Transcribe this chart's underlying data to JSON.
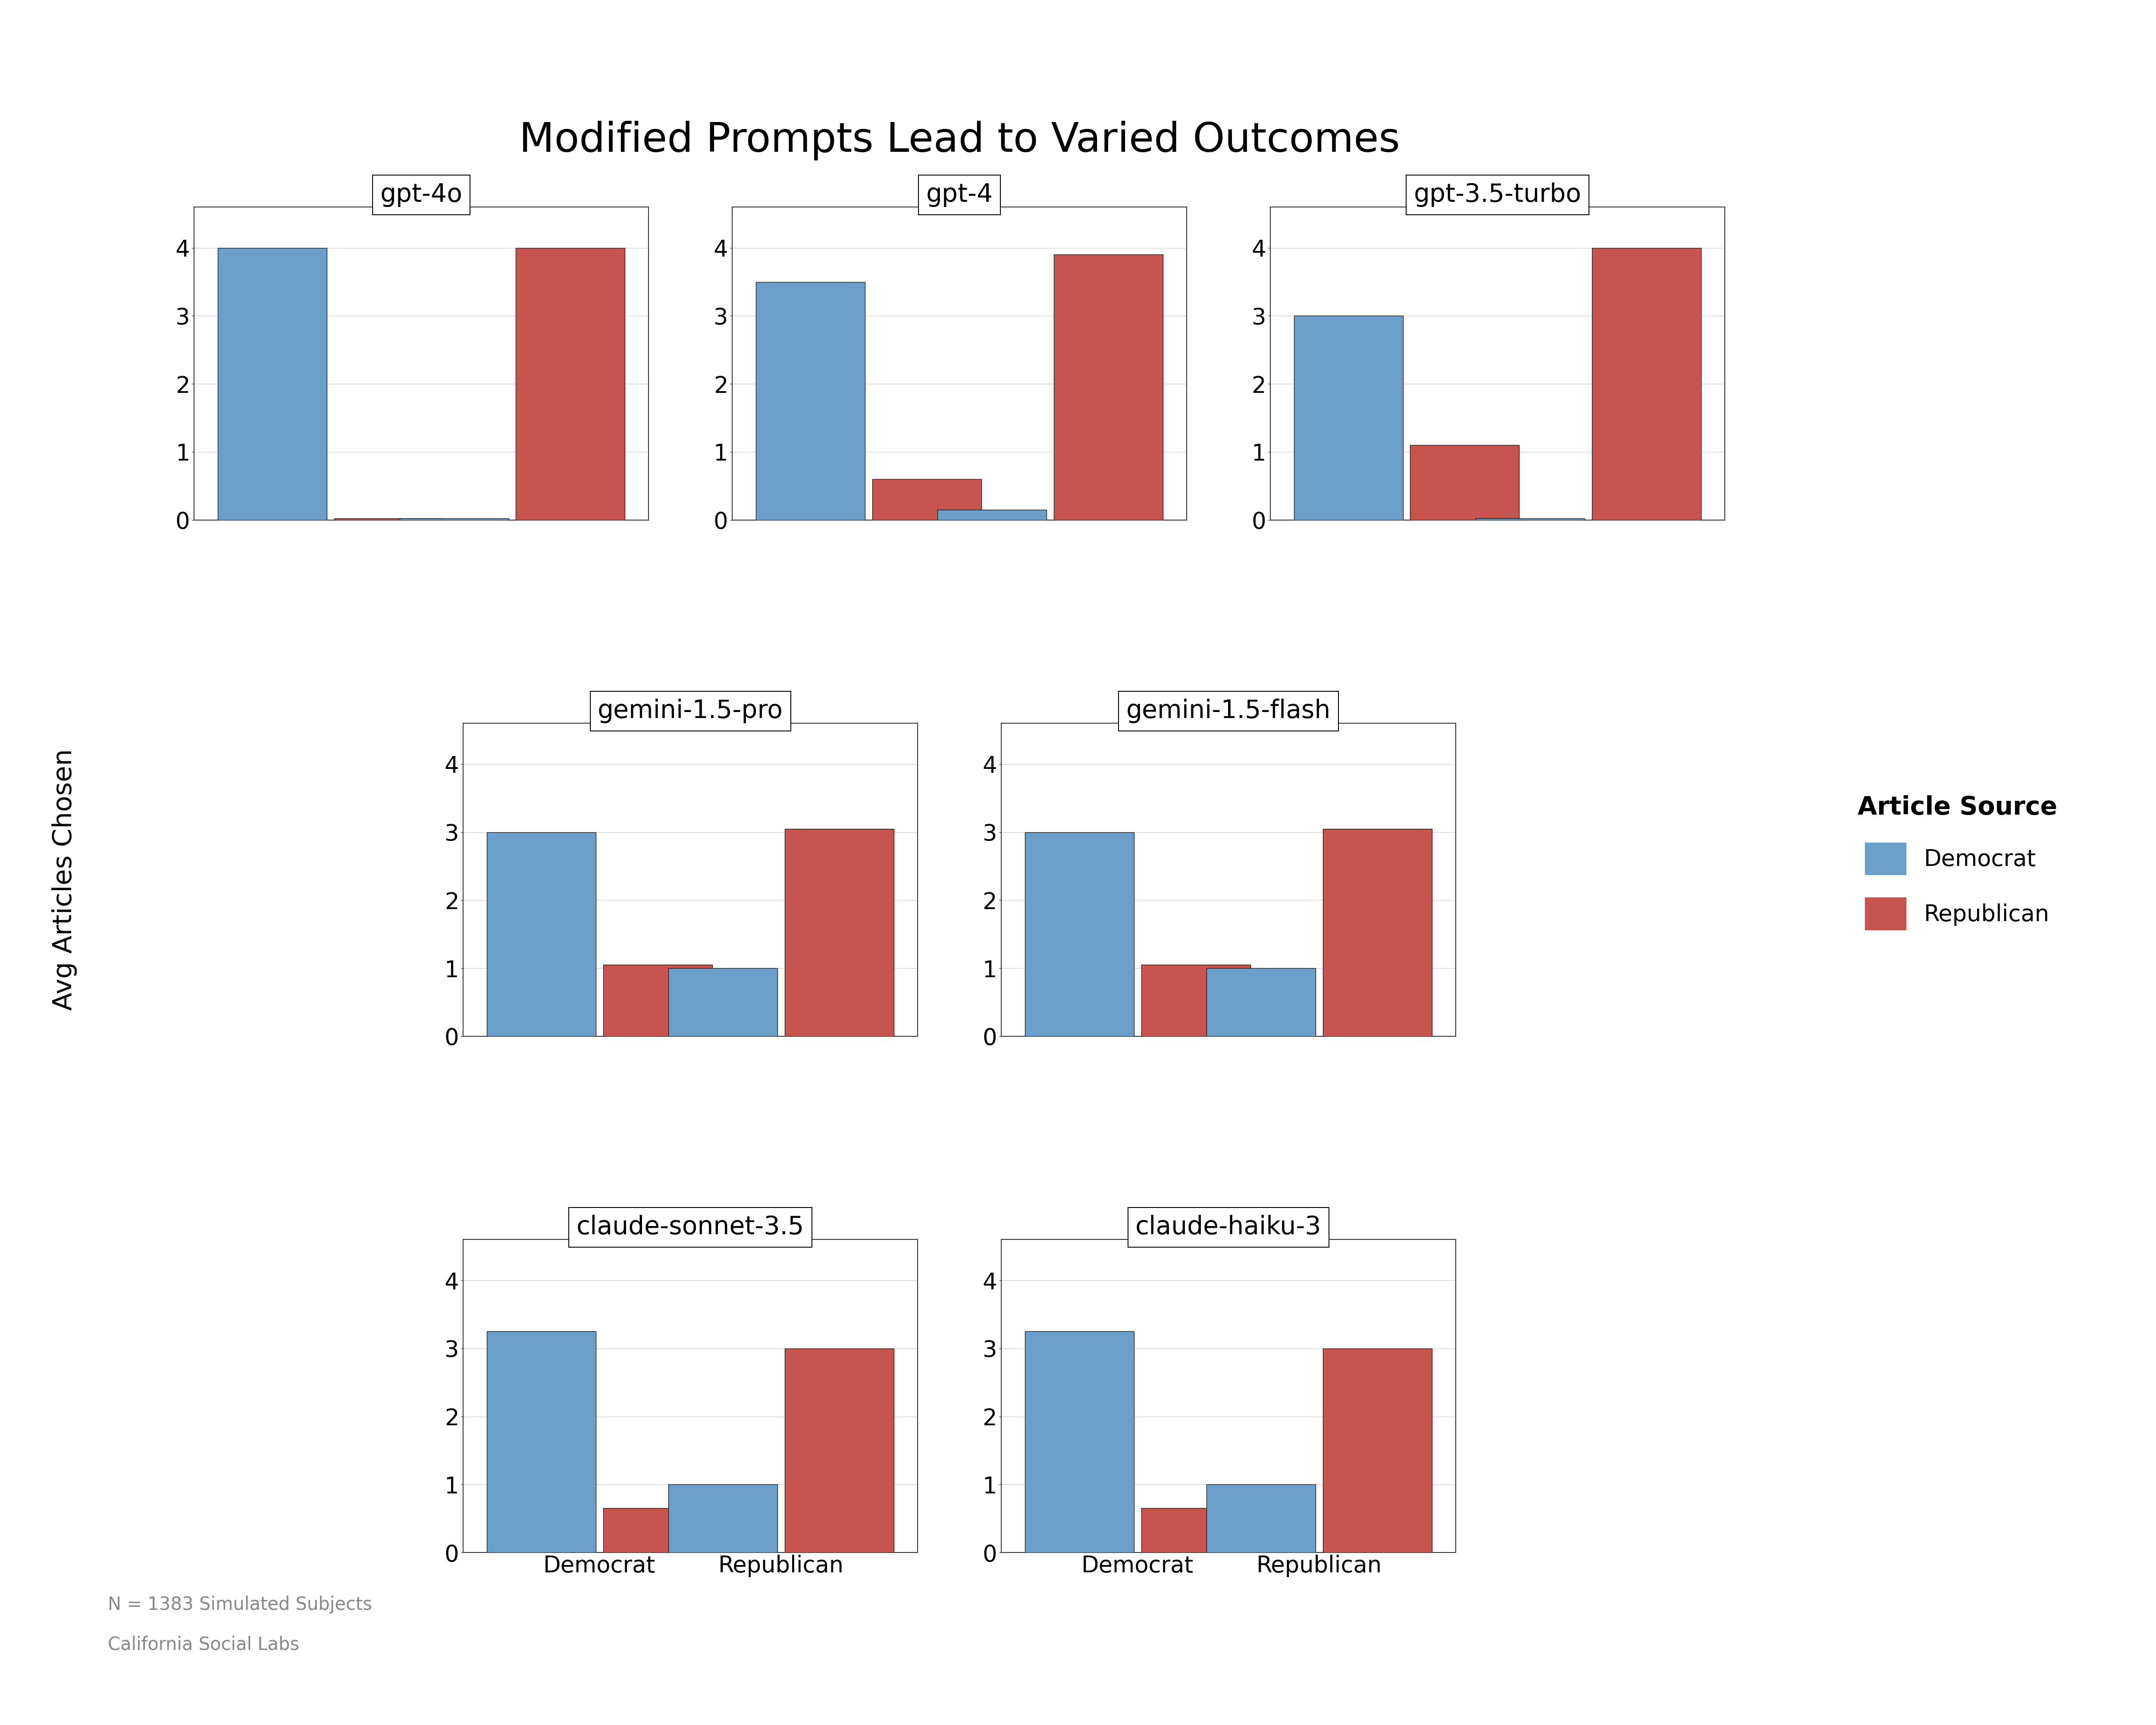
{
  "title": "Modified Prompts Lead to Varied Outcomes",
  "ylabel": "Avg Articles Chosen",
  "footnote_line1": "N = 1383 Simulated Subjects",
  "footnote_line2": "California Social Labs",
  "legend_title": "Article Source",
  "legend_labels": [
    "Democrat",
    "Republican"
  ],
  "democrat_color": "#6B9FCA",
  "republican_color": "#C8544F",
  "bar_edgecolor": "#1a1a1a",
  "background_color": "#ffffff",
  "models": [
    {
      "name": "gpt-4o",
      "dem_dem": 4.0,
      "dem_rep": 0.02,
      "rep_dem": 0.02,
      "rep_rep": 4.0,
      "row": 0,
      "col": 0
    },
    {
      "name": "gpt-4",
      "dem_dem": 3.5,
      "dem_rep": 0.6,
      "rep_dem": 0.15,
      "rep_rep": 3.9,
      "row": 0,
      "col": 1
    },
    {
      "name": "gpt-3.5-turbo",
      "dem_dem": 3.0,
      "dem_rep": 1.1,
      "rep_dem": 0.02,
      "rep_rep": 4.0,
      "row": 0,
      "col": 2
    },
    {
      "name": "gemini-1.5-pro",
      "dem_dem": 3.0,
      "dem_rep": 1.05,
      "rep_dem": 1.0,
      "rep_rep": 3.05,
      "row": 1,
      "col": 0
    },
    {
      "name": "gemini-1.5-flash",
      "dem_dem": 3.0,
      "dem_rep": 1.05,
      "rep_dem": 1.0,
      "rep_rep": 3.05,
      "row": 1,
      "col": 1
    },
    {
      "name": "claude-sonnet-3.5",
      "dem_dem": 3.25,
      "dem_rep": 0.65,
      "rep_dem": 1.0,
      "rep_rep": 3.0,
      "row": 2,
      "col": 0
    },
    {
      "name": "claude-haiku-3",
      "dem_dem": 3.25,
      "dem_rep": 0.65,
      "rep_dem": 1.0,
      "rep_rep": 3.0,
      "row": 2,
      "col": 1
    }
  ],
  "ylim": [
    0,
    4.6
  ],
  "yticks": [
    0,
    1,
    2,
    3,
    4
  ],
  "bar_width": 0.6,
  "title_fontsize": 68,
  "axis_label_fontsize": 44,
  "tick_fontsize": 38,
  "subplot_title_fontsize": 42,
  "legend_title_fontsize": 42,
  "legend_label_fontsize": 38,
  "footnote_fontsize": 30
}
